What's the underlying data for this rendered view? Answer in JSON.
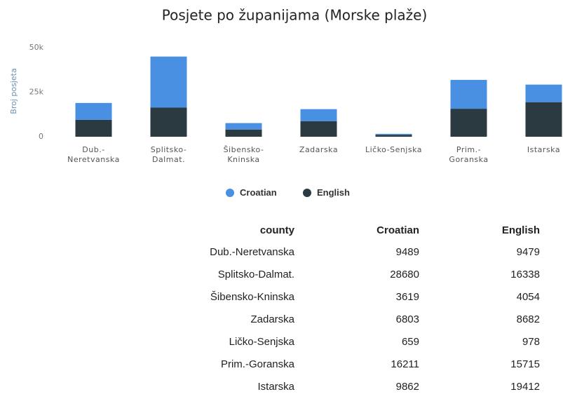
{
  "chart_data": {
    "type": "bar",
    "stacked": true,
    "title": "Posjete po županijama (Morske plaže)",
    "y_label": "Broj posjeta",
    "categories": [
      "Dub.-Neretvanska",
      "Splitsko-Dalmat.",
      "Šibensko-Kninska",
      "Zadarska",
      "Ličko-Senjska",
      "Prim.-Goranska",
      "Istarska"
    ],
    "series": [
      {
        "name": "Croatian",
        "color": "#4a90e2",
        "values": [
          9489,
          28680,
          3619,
          6803,
          659,
          16211,
          9862
        ]
      },
      {
        "name": "English",
        "color": "#2b3a40",
        "values": [
          9479,
          16338,
          4054,
          8682,
          978,
          15715,
          19412
        ]
      }
    ],
    "ylim": [
      0,
      50000
    ],
    "yticks": [
      {
        "value": 0,
        "label": "0"
      },
      {
        "value": 25000,
        "label": "25k"
      },
      {
        "value": 50000,
        "label": "50k"
      }
    ],
    "grid": false,
    "legend": "bottom"
  },
  "table": {
    "header": "county"
  }
}
